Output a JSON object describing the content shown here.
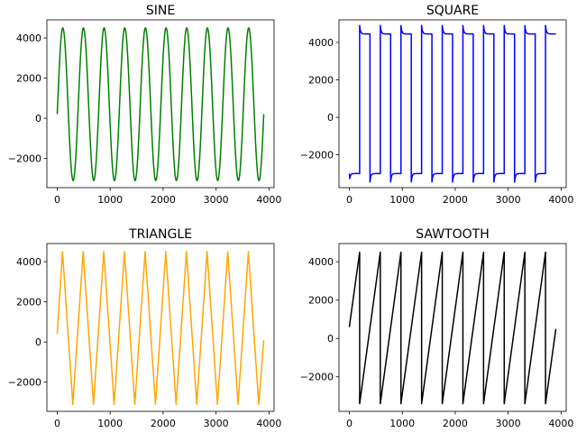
{
  "chart_data": [
    {
      "type": "line",
      "title": "SINE",
      "color": "#008000",
      "xlim": [
        -195,
        4095
      ],
      "ylim": [
        -3450,
        4900
      ],
      "xticks": [
        0,
        1000,
        2000,
        3000,
        4000
      ],
      "yticks": [
        -2000,
        0,
        2000,
        4000
      ],
      "waveform": "sine",
      "x_range": [
        0,
        3900
      ],
      "period": 390,
      "amplitude": 3800,
      "offset": 700,
      "series": [
        {
          "x": [
            0,
            97,
            195,
            292,
            390,
            487,
            585,
            682,
            780,
            877,
            975,
            1072,
            1170,
            1267,
            1365,
            1462,
            1560,
            1657,
            1755,
            1852,
            1950,
            2047,
            2145,
            2242,
            2340,
            2437,
            2535,
            2632,
            2730,
            2827,
            2925,
            3022,
            3120,
            3217,
            3315,
            3412,
            3510,
            3607,
            3705,
            3802,
            3900
          ],
          "y": [
            200,
            4500,
            700,
            -3100,
            700,
            4500,
            700,
            -3100,
            700,
            4500,
            700,
            -3100,
            700,
            4500,
            700,
            -3100,
            700,
            4500,
            700,
            -3100,
            700,
            4500,
            700,
            -3100,
            700,
            4500,
            700,
            -3100,
            700,
            4500,
            700,
            -3100,
            700,
            4500,
            700,
            -3100,
            700,
            4500,
            700,
            -3100,
            -200
          ]
        }
      ]
    },
    {
      "type": "line",
      "title": "SQUARE",
      "color": "#0000ff",
      "xlim": [
        -195,
        4095
      ],
      "ylim": [
        -3750,
        5200
      ],
      "xticks": [
        0,
        1000,
        2000,
        3000,
        4000
      ],
      "yticks": [
        -2000,
        0,
        2000,
        4000
      ],
      "waveform": "square",
      "x_range": [
        0,
        3900
      ],
      "period": 390,
      "high": 4450,
      "low": -3000,
      "overshoot": 450,
      "series": [
        {
          "x": [
            0,
            195,
            390,
            585,
            780,
            975,
            1170,
            1365,
            1560,
            1755,
            1950,
            2145,
            2340,
            2535,
            2730,
            2925,
            3120,
            3315,
            3510,
            3705,
            3900
          ],
          "y": [
            -3000,
            4450,
            -3000,
            4450,
            -3000,
            4450,
            -3000,
            4450,
            -3000,
            4450,
            -3000,
            4450,
            -3000,
            4450,
            -3000,
            4450,
            -3000,
            4450,
            -3000,
            4450,
            -3000
          ]
        }
      ]
    },
    {
      "type": "line",
      "title": "TRIANGLE",
      "color": "#ffa500",
      "xlim": [
        -195,
        4095
      ],
      "ylim": [
        -3450,
        4900
      ],
      "xticks": [
        0,
        1000,
        2000,
        3000,
        4000
      ],
      "yticks": [
        -2000,
        0,
        2000,
        4000
      ],
      "waveform": "triangle",
      "series": [
        {
          "x": [
            0,
            100,
            295,
            490,
            685,
            880,
            1075,
            1270,
            1465,
            1660,
            1855,
            2050,
            2245,
            2440,
            2635,
            2830,
            3025,
            3220,
            3415,
            3610,
            3805,
            3900
          ],
          "y": [
            400,
            4500,
            -3100,
            4500,
            -3100,
            4500,
            -3100,
            4500,
            -3100,
            4500,
            -3100,
            4500,
            -3100,
            4500,
            -3100,
            4500,
            -3100,
            4500,
            -3100,
            4500,
            -3100,
            100
          ]
        }
      ]
    },
    {
      "type": "line",
      "title": "SAWTOOTH",
      "color": "#000000",
      "xlim": [
        -195,
        4095
      ],
      "ylim": [
        -3800,
        4950
      ],
      "xticks": [
        0,
        1000,
        2000,
        3000,
        4000
      ],
      "yticks": [
        -2000,
        0,
        2000,
        4000
      ],
      "waveform": "sawtooth",
      "series": [
        {
          "x": [
            0,
            195,
            195,
            585,
            585,
            975,
            975,
            1365,
            1365,
            1755,
            1755,
            2145,
            2145,
            2535,
            2535,
            2925,
            2925,
            3315,
            3315,
            3705,
            3705,
            3900
          ],
          "y": [
            600,
            4500,
            -3400,
            4500,
            -3400,
            4500,
            -3400,
            4500,
            -3400,
            4500,
            -3400,
            4500,
            -3400,
            4500,
            -3400,
            4500,
            -3400,
            4500,
            -3400,
            4500,
            -3400,
            500
          ]
        }
      ]
    }
  ]
}
